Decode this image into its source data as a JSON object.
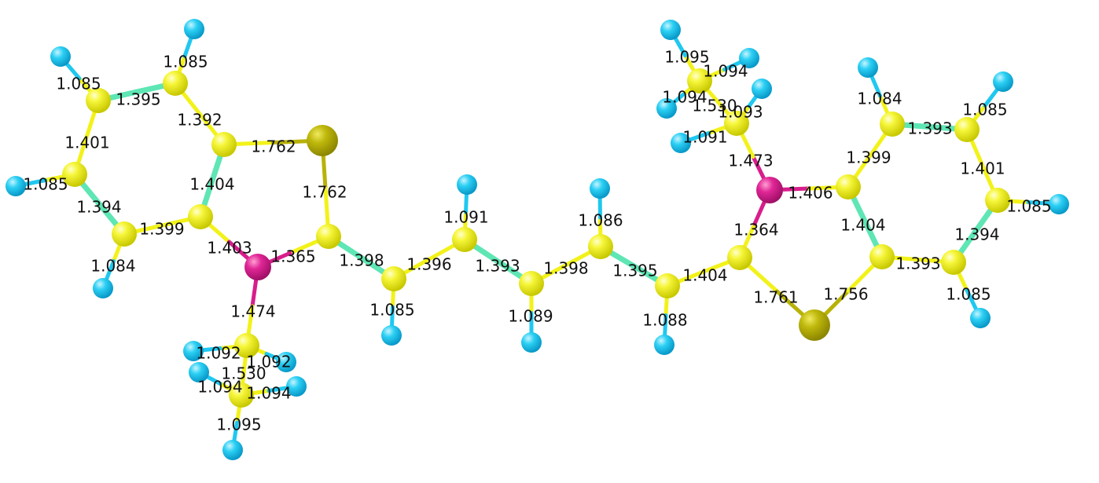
{
  "colors": {
    "carbon": "#f2f21a",
    "hydrogen": "#1fc8f0",
    "nitrogen": "#d81d8c",
    "sulfur": "#b8b208",
    "aromatic_bond": "#5ee6b4"
  },
  "atoms": [
    {
      "id": "H1",
      "el": "H"
    },
    {
      "id": "H2",
      "el": "H"
    },
    {
      "id": "H3",
      "el": "H"
    },
    {
      "id": "H4",
      "el": "H"
    },
    {
      "id": "H5",
      "el": "H"
    },
    {
      "id": "H6",
      "el": "H"
    },
    {
      "id": "H7",
      "el": "H"
    },
    {
      "id": "H8",
      "el": "H"
    },
    {
      "id": "H9",
      "el": "H"
    },
    {
      "id": "H10",
      "el": "H"
    },
    {
      "id": "H11",
      "el": "H"
    },
    {
      "id": "H12",
      "el": "H"
    },
    {
      "id": "H13",
      "el": "H"
    },
    {
      "id": "H14",
      "el": "H"
    },
    {
      "id": "H15",
      "el": "H"
    },
    {
      "id": "H16",
      "el": "H"
    },
    {
      "id": "H17",
      "el": "H"
    },
    {
      "id": "H18",
      "el": "H"
    },
    {
      "id": "H19",
      "el": "H"
    },
    {
      "id": "H20",
      "el": "H"
    },
    {
      "id": "H21",
      "el": "H"
    },
    {
      "id": "H22",
      "el": "H"
    },
    {
      "id": "H23",
      "el": "H"
    },
    {
      "id": "H24",
      "el": "H"
    },
    {
      "id": "H25",
      "el": "H"
    },
    {
      "id": "C1",
      "el": "C"
    },
    {
      "id": "C2",
      "el": "C"
    },
    {
      "id": "C3",
      "el": "C"
    },
    {
      "id": "C4",
      "el": "C"
    },
    {
      "id": "C5",
      "el": "C"
    },
    {
      "id": "C6",
      "el": "C"
    },
    {
      "id": "C7",
      "el": "C"
    },
    {
      "id": "C8",
      "el": "C"
    },
    {
      "id": "C9",
      "el": "C"
    },
    {
      "id": "C10",
      "el": "C"
    },
    {
      "id": "C11",
      "el": "C"
    },
    {
      "id": "C12",
      "el": "C"
    },
    {
      "id": "C13",
      "el": "C"
    },
    {
      "id": "C14",
      "el": "C"
    },
    {
      "id": "C15",
      "el": "C"
    },
    {
      "id": "C16",
      "el": "C"
    },
    {
      "id": "C17",
      "el": "C"
    },
    {
      "id": "C18",
      "el": "C"
    },
    {
      "id": "C19",
      "el": "C"
    },
    {
      "id": "C20",
      "el": "C"
    },
    {
      "id": "C21",
      "el": "C"
    },
    {
      "id": "C22",
      "el": "C"
    },
    {
      "id": "C23",
      "el": "C"
    },
    {
      "id": "C24",
      "el": "C"
    },
    {
      "id": "C25",
      "el": "C"
    },
    {
      "id": "C26",
      "el": "C"
    },
    {
      "id": "S1",
      "el": "S"
    },
    {
      "id": "S2",
      "el": "S"
    },
    {
      "id": "N1",
      "el": "N"
    },
    {
      "id": "N2",
      "el": "N"
    }
  ],
  "bonds": [
    {
      "a": "C1",
      "b": "H1",
      "len": "1.085"
    },
    {
      "a": "C2",
      "b": "H2",
      "len": "1.085"
    },
    {
      "a": "C1",
      "b": "C2",
      "len": "1.395",
      "aromatic": true
    },
    {
      "a": "C2",
      "b": "C3",
      "len": "1.392"
    },
    {
      "a": "C1",
      "b": "C4",
      "len": "1.401"
    },
    {
      "a": "C3",
      "b": "S1",
      "len": "1.762"
    },
    {
      "a": "C4",
      "b": "H3",
      "len": "1.085"
    },
    {
      "a": "C3",
      "b": "C6",
      "len": "1.404",
      "aromatic": true
    },
    {
      "a": "C4",
      "b": "C5",
      "len": "1.394",
      "aromatic": true
    },
    {
      "a": "C5",
      "b": "C6",
      "len": "1.399"
    },
    {
      "a": "S1",
      "b": "C7",
      "len": "1.762"
    },
    {
      "a": "C5",
      "b": "H4",
      "len": "1.084"
    },
    {
      "a": "C6",
      "b": "N1",
      "len": "1.403"
    },
    {
      "a": "N1",
      "b": "C7",
      "len": "1.365"
    },
    {
      "a": "C7",
      "b": "C8",
      "len": "1.398",
      "aromatic": true
    },
    {
      "a": "N1",
      "b": "C9",
      "len": "1.474"
    },
    {
      "a": "C9",
      "b": "H5",
      "len": "1.092"
    },
    {
      "a": "C9",
      "b": "H6",
      "len": "1.092"
    },
    {
      "a": "C9",
      "b": "C10",
      "len": "1.530"
    },
    {
      "a": "C10",
      "b": "H7",
      "len": "1.094"
    },
    {
      "a": "C10",
      "b": "H8",
      "len": "1.094"
    },
    {
      "a": "C10",
      "b": "H9",
      "len": "1.095"
    },
    {
      "a": "C8",
      "b": "H10",
      "len": "1.085"
    },
    {
      "a": "C8",
      "b": "C11",
      "len": "1.396"
    },
    {
      "a": "C11",
      "b": "H11",
      "len": "1.091"
    },
    {
      "a": "C11",
      "b": "C12",
      "len": "1.393",
      "aromatic": true
    },
    {
      "a": "C12",
      "b": "H12",
      "len": "1.089"
    },
    {
      "a": "C12",
      "b": "C13",
      "len": "1.398"
    },
    {
      "a": "C13",
      "b": "H13",
      "len": "1.086"
    },
    {
      "a": "C13",
      "b": "C14",
      "len": "1.395",
      "aromatic": true
    },
    {
      "a": "C14",
      "b": "H14",
      "len": "1.088"
    },
    {
      "a": "C14",
      "b": "C15",
      "len": "1.404"
    },
    {
      "a": "C15",
      "b": "N2",
      "len": "1.364"
    },
    {
      "a": "C15",
      "b": "S2",
      "len": "1.761"
    },
    {
      "a": "S2",
      "b": "C18",
      "len": "1.756"
    },
    {
      "a": "N2",
      "b": "C17",
      "len": "1.406"
    },
    {
      "a": "N2",
      "b": "C16",
      "len": "1.473"
    },
    {
      "a": "C16",
      "b": "H15",
      "len": "1.091"
    },
    {
      "a": "C16",
      "b": "H16",
      "len": "1.093"
    },
    {
      "a": "C16",
      "b": "C19",
      "len": "1.530"
    },
    {
      "a": "C19",
      "b": "H17",
      "len": "1.095"
    },
    {
      "a": "C19",
      "b": "H18",
      "len": "1.094"
    },
    {
      "a": "C19",
      "b": "H19",
      "len": "1.094"
    },
    {
      "a": "C17",
      "b": "C18",
      "len": "1.404",
      "aromatic": true
    },
    {
      "a": "C17",
      "b": "C20",
      "len": "1.399"
    },
    {
      "a": "C20",
      "b": "H20",
      "len": "1.084"
    },
    {
      "a": "C20",
      "b": "C21",
      "len": "1.393",
      "aromatic": true
    },
    {
      "a": "C21",
      "b": "H21",
      "len": "1.085"
    },
    {
      "a": "C21",
      "b": "C22",
      "len": "1.401"
    },
    {
      "a": "C22",
      "b": "H22",
      "len": "1.085"
    },
    {
      "a": "C22",
      "b": "C23",
      "len": "1.394",
      "aromatic": true
    },
    {
      "a": "C23",
      "b": "H23",
      "len": "1.085"
    },
    {
      "a": "C23",
      "b": "C18",
      "len": "1.393"
    }
  ]
}
